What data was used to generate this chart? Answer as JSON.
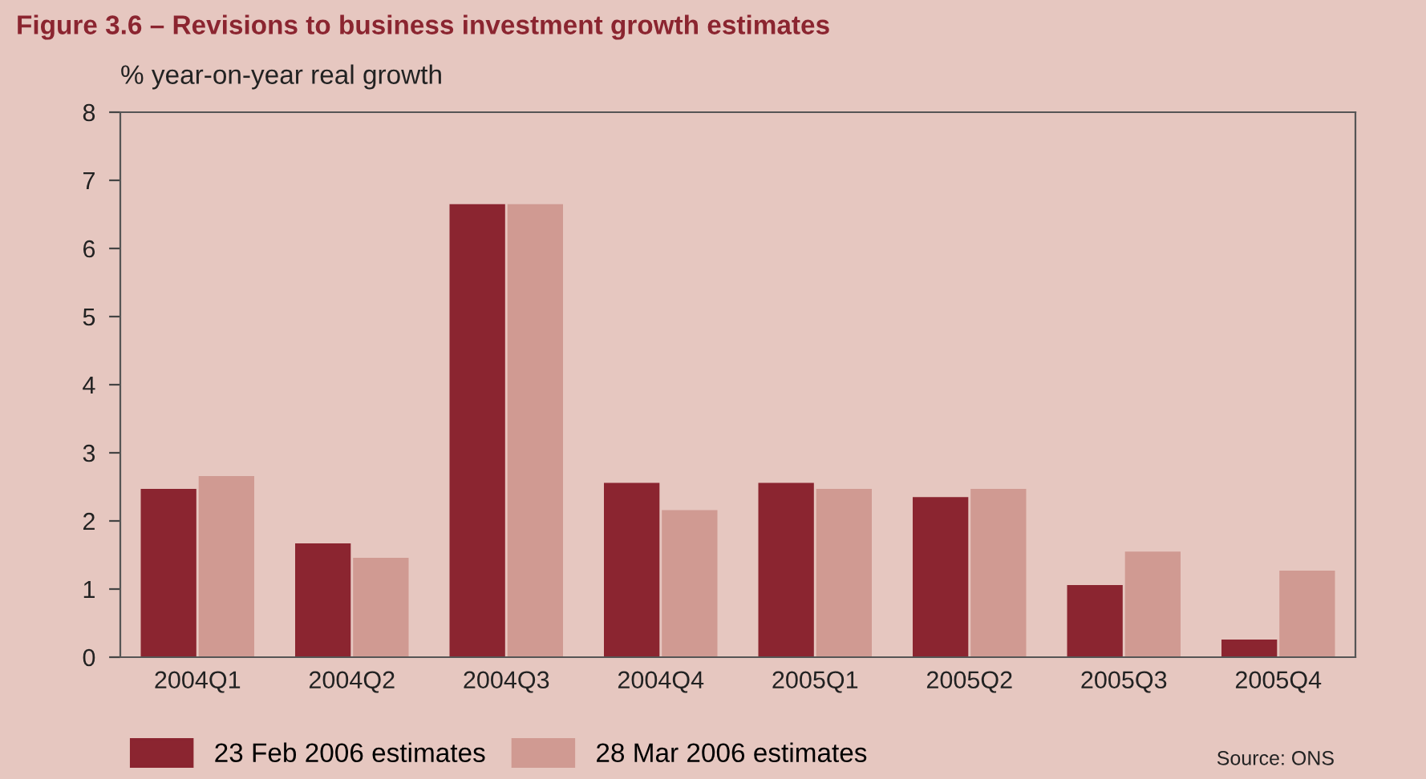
{
  "chart_data": {
    "type": "bar",
    "title": "Figure 3.6 – Revisions to business investment growth estimates",
    "ylabel": "% year-on-year real growth",
    "categories": [
      "2004Q1",
      "2004Q2",
      "2004Q3",
      "2004Q4",
      "2005Q1",
      "2005Q2",
      "2005Q3",
      "2005Q4"
    ],
    "series": [
      {
        "name": "23 Feb 2006 estimates",
        "color": "#8b2530",
        "values": [
          2.47,
          1.67,
          6.65,
          2.56,
          2.56,
          2.35,
          1.06,
          0.26
        ]
      },
      {
        "name": "28 Mar 2006 estimates",
        "color": "#d09a92",
        "values": [
          2.66,
          1.46,
          6.65,
          2.16,
          2.47,
          2.47,
          1.55,
          1.27
        ]
      }
    ],
    "ylim": [
      0,
      8
    ],
    "yticks": [
      0,
      1,
      2,
      3,
      4,
      5,
      6,
      7,
      8
    ],
    "grid": false,
    "legend": "bottom left",
    "annotations": [
      "Source: ONS"
    ]
  }
}
